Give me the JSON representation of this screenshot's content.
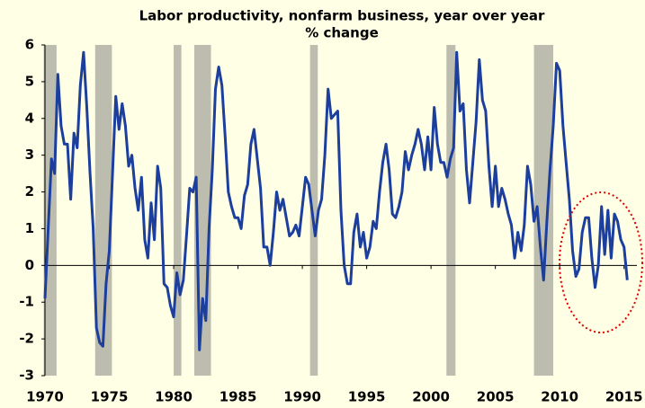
{
  "chart_data": {
    "type": "line",
    "title": "Labor productivity, nonfarm business, year over year",
    "subtitle": "% change",
    "color": "#1c3f9e",
    "x": [
      1970.0,
      1970.25,
      1970.5,
      1970.75,
      1971.0,
      1971.25,
      1971.5,
      1971.75,
      1972.0,
      1972.25,
      1972.5,
      1972.75,
      1973.0,
      1973.25,
      1973.5,
      1973.75,
      1974.0,
      1974.25,
      1974.5,
      1974.75,
      1975.0,
      1975.25,
      1975.5,
      1975.75,
      1976.0,
      1976.25,
      1976.5,
      1976.75,
      1977.0,
      1977.25,
      1977.5,
      1977.75,
      1978.0,
      1978.25,
      1978.5,
      1978.75,
      1979.0,
      1979.25,
      1979.5,
      1979.75,
      1980.0,
      1980.25,
      1980.5,
      1980.75,
      1981.0,
      1981.25,
      1981.5,
      1981.75,
      1982.0,
      1982.25,
      1982.5,
      1982.75,
      1983.0,
      1983.25,
      1983.5,
      1983.75,
      1984.0,
      1984.25,
      1984.5,
      1984.75,
      1985.0,
      1985.25,
      1985.5,
      1985.75,
      1986.0,
      1986.25,
      1986.5,
      1986.75,
      1987.0,
      1987.25,
      1987.5,
      1987.75,
      1988.0,
      1988.25,
      1988.5,
      1988.75,
      1989.0,
      1989.25,
      1989.5,
      1989.75,
      1990.0,
      1990.25,
      1990.5,
      1990.75,
      1991.0,
      1991.25,
      1991.5,
      1991.75,
      1992.0,
      1992.25,
      1992.5,
      1992.75,
      1993.0,
      1993.25,
      1993.5,
      1993.75,
      1994.0,
      1994.25,
      1994.5,
      1994.75,
      1995.0,
      1995.25,
      1995.5,
      1995.75,
      1996.0,
      1996.25,
      1996.5,
      1996.75,
      1997.0,
      1997.25,
      1997.5,
      1997.75,
      1998.0,
      1998.25,
      1998.5,
      1998.75,
      1999.0,
      1999.25,
      1999.5,
      1999.75,
      2000.0,
      2000.25,
      2000.5,
      2000.75,
      2001.0,
      2001.25,
      2001.5,
      2001.75,
      2002.0,
      2002.25,
      2002.5,
      2002.75,
      2003.0,
      2003.25,
      2003.5,
      2003.75,
      2004.0,
      2004.25,
      2004.5,
      2004.75,
      2005.0,
      2005.25,
      2005.5,
      2005.75,
      2006.0,
      2006.25,
      2006.5,
      2006.75,
      2007.0,
      2007.25,
      2007.5,
      2007.75,
      2008.0,
      2008.25,
      2008.5,
      2008.75,
      2009.0,
      2009.25,
      2009.5,
      2009.75,
      2010.0,
      2010.25,
      2010.5,
      2010.75,
      2011.0,
      2011.25,
      2011.5,
      2011.75,
      2012.0,
      2012.25,
      2012.5,
      2012.75,
      2013.0,
      2013.25,
      2013.5,
      2013.75,
      2014.0,
      2014.25,
      2014.5,
      2014.75,
      2015.0,
      2015.25
    ],
    "values": [
      -0.9,
      1.0,
      2.9,
      2.5,
      5.2,
      3.8,
      3.3,
      3.3,
      1.8,
      3.6,
      3.2,
      4.9,
      5.8,
      4.3,
      2.5,
      1.0,
      -1.7,
      -2.1,
      -2.2,
      -0.5,
      0.4,
      2.5,
      4.6,
      3.7,
      4.4,
      3.8,
      2.7,
      3.0,
      2.1,
      1.5,
      2.4,
      0.7,
      0.2,
      1.7,
      0.7,
      2.7,
      2.1,
      -0.5,
      -0.6,
      -1.1,
      -1.4,
      -0.2,
      -0.8,
      -0.4,
      0.8,
      2.1,
      2.0,
      2.4,
      -2.3,
      -0.9,
      -1.5,
      1.0,
      2.6,
      4.8,
      5.4,
      4.9,
      3.5,
      2.0,
      1.6,
      1.3,
      1.3,
      1.0,
      1.9,
      2.2,
      3.3,
      3.7,
      2.9,
      2.1,
      0.5,
      0.5,
      0.0,
      0.9,
      2.0,
      1.5,
      1.8,
      1.3,
      0.8,
      0.9,
      1.1,
      0.8,
      1.6,
      2.4,
      2.2,
      1.5,
      0.8,
      1.5,
      1.8,
      3.0,
      4.8,
      4.0,
      4.1,
      4.2,
      1.5,
      0.0,
      -0.5,
      -0.5,
      0.9,
      1.4,
      0.5,
      0.9,
      0.2,
      0.5,
      1.2,
      1.0,
      2.0,
      2.8,
      3.3,
      2.6,
      1.4,
      1.3,
      1.6,
      2.0,
      3.1,
      2.6,
      3.0,
      3.3,
      3.7,
      3.3,
      2.6,
      3.5,
      2.6,
      4.3,
      3.3,
      2.8,
      2.8,
      2.4,
      2.9,
      3.2,
      5.8,
      4.2,
      4.4,
      2.6,
      1.7,
      2.8,
      3.9,
      5.6,
      4.5,
      4.2,
      2.7,
      1.6,
      2.7,
      1.6,
      2.1,
      1.8,
      1.4,
      1.1,
      0.2,
      0.9,
      0.4,
      1.1,
      2.7,
      2.2,
      1.2,
      1.6,
      0.5,
      -0.4,
      1.2,
      2.6,
      3.8,
      5.5,
      5.3,
      3.8,
      2.8,
      1.8,
      0.4,
      -0.3,
      -0.1,
      0.9,
      1.3,
      1.3,
      0.2,
      -0.6,
      0.0,
      1.6,
      0.3,
      1.5,
      0.2,
      1.4,
      1.2,
      0.7,
      0.5,
      -0.4
    ],
    "recessions": [
      [
        1969.9,
        1970.9
      ],
      [
        1973.9,
        1975.2
      ],
      [
        1980.0,
        1980.6
      ],
      [
        1981.6,
        1982.9
      ],
      [
        1990.6,
        1991.2
      ],
      [
        2001.2,
        2001.9
      ],
      [
        2008.0,
        2009.5
      ]
    ],
    "recession_color": "#bdbdaf",
    "xlim": [
      1970,
      2016
    ],
    "xticks": [
      1970,
      1975,
      1980,
      1985,
      1990,
      1995,
      2000,
      2005,
      2010,
      2015
    ],
    "ylim": [
      -3,
      6
    ],
    "yticks": [
      -3,
      -2,
      -1,
      0,
      1,
      2,
      3,
      4,
      5,
      6
    ]
  }
}
